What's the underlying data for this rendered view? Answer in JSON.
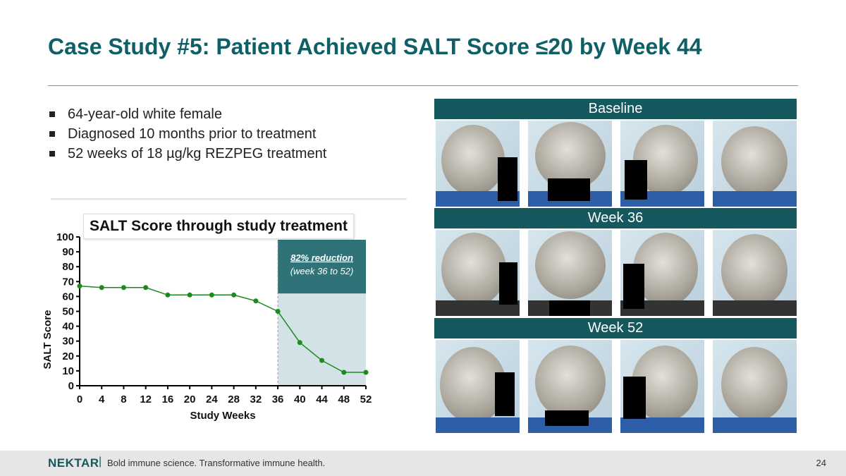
{
  "slide": {
    "title": "Case Study #5: Patient Achieved SALT Score ≤20 by Week 44",
    "bullets": [
      "64-year-old white female",
      "Diagnosed 10 months prior to treatment",
      "52 weeks of 18 µg/kg REZPEG treatment"
    ]
  },
  "chart_data": {
    "type": "line",
    "title": "SALT Score through study treatment",
    "xlabel": "Study Weeks",
    "ylabel": "SALT Score",
    "x": [
      0,
      4,
      8,
      12,
      16,
      20,
      24,
      28,
      32,
      36,
      40,
      44,
      48,
      52
    ],
    "xticks": [
      "0",
      "4",
      "8",
      "12",
      "16",
      "20",
      "24",
      "28",
      "32",
      "36",
      "40",
      "44",
      "48",
      "52"
    ],
    "yticks": [
      "0",
      "10",
      "20",
      "30",
      "40",
      "50",
      "60",
      "70",
      "80",
      "90",
      "100"
    ],
    "xlim": [
      0,
      52
    ],
    "ylim": [
      0,
      100
    ],
    "series": [
      {
        "values": [
          67,
          66,
          66,
          66,
          61,
          61,
          61,
          61,
          57,
          50,
          29,
          17,
          9,
          9
        ]
      }
    ],
    "series_color": "#1e8a1e",
    "highlight": {
      "x_range": [
        36,
        52
      ],
      "top_value": 62,
      "label_line1": "82% reduction",
      "label_line2": "(week 36 to 52)",
      "shade_color": "#d3e2e6",
      "box_color": "#2f7378"
    },
    "grid": false
  },
  "photos": {
    "rows": [
      {
        "label": "Baseline"
      },
      {
        "label": "Week 36"
      },
      {
        "label": "Week 52"
      }
    ]
  },
  "footer": {
    "logo": "NEKTAR",
    "separator": "|",
    "tagline": "Bold immune science. Transformative immune health.",
    "page_number": "24"
  }
}
